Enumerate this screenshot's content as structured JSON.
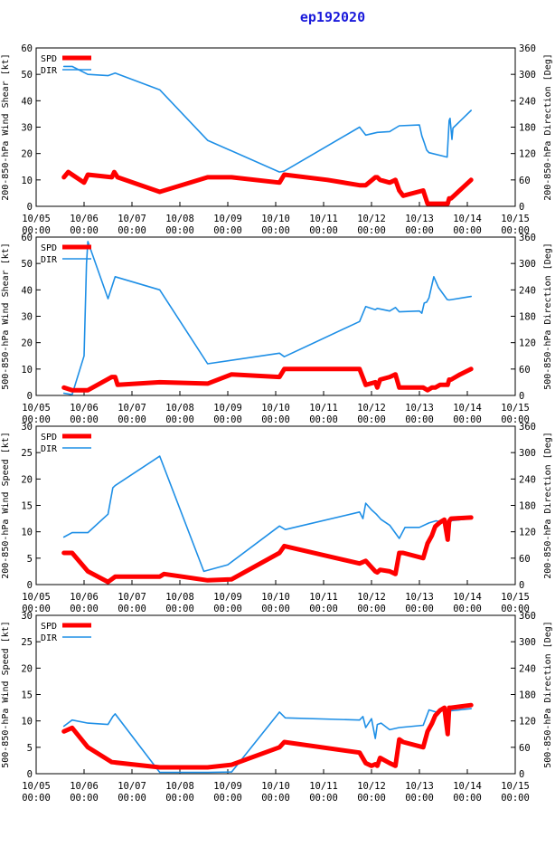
{
  "title": "ep192020",
  "colors": {
    "spd": "#ff0000",
    "dir": "#1e8fe6",
    "frame": "#000000",
    "grid": "#a0a0a0",
    "title": "#1a1adb"
  },
  "x_ticks": [
    [
      "10/05",
      "00:00"
    ],
    [
      "10/06",
      "00:00"
    ],
    [
      "10/07",
      "00:00"
    ],
    [
      "10/08",
      "00:00"
    ],
    [
      "10/09",
      "00:00"
    ],
    [
      "10/10",
      "00:00"
    ],
    [
      "10/11",
      "00:00"
    ],
    [
      "10/12",
      "00:00"
    ],
    [
      "10/13",
      "00:00"
    ],
    [
      "10/14",
      "00:00"
    ],
    [
      "10/15",
      "00:00"
    ]
  ],
  "chart_data": [
    {
      "type": "line",
      "ylabel": "200-850-hPa Wind Shear [kt]",
      "y2label": "200-850-hPa Direction [Deg]",
      "xlim": [
        0,
        10
      ],
      "ylim": [
        0,
        60
      ],
      "y2lim": [
        0,
        360
      ],
      "yticks": [
        0,
        10,
        20,
        30,
        40,
        50,
        60
      ],
      "y2ticks": [
        0,
        60,
        120,
        180,
        240,
        300,
        360
      ],
      "legend": [
        "SPD",
        "DIR"
      ],
      "legend_position": "top-left",
      "series": [
        {
          "name": "SPD",
          "axis": "left",
          "x": [
            0.58,
            0.67,
            0.75,
            1.0,
            1.08,
            1.58,
            1.63,
            1.7,
            2.58,
            3.58,
            4.08,
            5.08,
            5.18,
            6.08,
            6.75,
            6.88,
            7.08,
            7.12,
            7.18,
            7.38,
            7.5,
            7.58,
            7.66,
            8.08,
            8.17,
            8.26,
            8.3,
            8.33,
            8.43,
            8.52,
            8.59,
            8.62,
            8.66,
            9.08
          ],
          "y": [
            11,
            13,
            12,
            9,
            12,
            11,
            13,
            11,
            5.5,
            11,
            11,
            9,
            12,
            10,
            8,
            8,
            11,
            11,
            10,
            9,
            10,
            6,
            4,
            6,
            1,
            1,
            1,
            1,
            1,
            1,
            1,
            3,
            3,
            10
          ]
        },
        {
          "name": "DIR",
          "axis": "right",
          "x": [
            0.58,
            0.75,
            1.08,
            1.5,
            1.65,
            2.58,
            3.58,
            5.08,
            5.18,
            6.75,
            6.88,
            7.12,
            7.38,
            7.5,
            7.58,
            8.0,
            8.05,
            8.1,
            8.15,
            8.2,
            8.58,
            8.62,
            8.64,
            8.68,
            8.7,
            9.08
          ],
          "y": [
            318,
            318,
            300,
            297,
            303,
            265,
            150,
            78,
            80,
            180,
            162,
            168,
            170,
            178,
            183,
            185,
            160,
            145,
            128,
            122,
            112,
            195,
            200,
            152,
            178,
            218
          ]
        }
      ]
    },
    {
      "type": "line",
      "ylabel": "500-850-hPa Wind Shear [kt]",
      "y2label": "500-850-hPa Direction [Deg]",
      "xlim": [
        0,
        10
      ],
      "ylim": [
        0,
        60
      ],
      "y2lim": [
        0,
        360
      ],
      "yticks": [
        0,
        10,
        20,
        30,
        40,
        50,
        60
      ],
      "y2ticks": [
        0,
        60,
        120,
        180,
        240,
        300,
        360
      ],
      "legend": [
        "SPD",
        "DIR"
      ],
      "legend_position": "top-left",
      "series": [
        {
          "name": "SPD",
          "axis": "left",
          "x": [
            0.58,
            0.75,
            1.08,
            1.58,
            1.65,
            1.7,
            2.58,
            3.58,
            4.08,
            5.08,
            5.18,
            6.08,
            6.75,
            6.88,
            7.08,
            7.12,
            7.18,
            7.38,
            7.5,
            7.58,
            7.66,
            8.08,
            8.17,
            8.26,
            8.33,
            8.43,
            8.52,
            8.59,
            8.62,
            8.66,
            8.85,
            9.08
          ],
          "y": [
            3,
            2,
            2,
            7,
            7,
            4,
            5,
            4.5,
            8,
            7,
            10,
            10,
            10,
            4,
            5,
            3,
            6,
            7,
            8,
            3,
            3,
            3,
            2,
            3,
            3,
            4,
            4,
            4,
            6,
            6,
            8,
            10
          ]
        },
        {
          "name": "DIR",
          "axis": "right",
          "x": [
            0.58,
            0.75,
            1.0,
            1.05,
            1.08,
            1.5,
            1.65,
            2.58,
            3.58,
            5.08,
            5.18,
            6.75,
            6.88,
            7.08,
            7.12,
            7.38,
            7.5,
            7.58,
            8.0,
            8.05,
            8.1,
            8.15,
            8.2,
            8.3,
            8.4,
            8.58,
            8.62,
            9.08
          ],
          "y": [
            5,
            2,
            90,
            300,
            350,
            220,
            270,
            240,
            72,
            96,
            88,
            168,
            202,
            195,
            198,
            192,
            200,
            190,
            192,
            187,
            210,
            212,
            222,
            270,
            245,
            218,
            217,
            225
          ]
        }
      ]
    },
    {
      "type": "line",
      "ylabel": "200-850-hPa Wind Speed [kt]",
      "y2label": "200-850-hPa Direction [Deg]",
      "xlim": [
        0,
        10
      ],
      "ylim": [
        0,
        30
      ],
      "y2lim": [
        0,
        360
      ],
      "yticks": [
        0,
        5,
        10,
        15,
        20,
        25,
        30
      ],
      "y2ticks": [
        0,
        60,
        120,
        180,
        240,
        300,
        360
      ],
      "legend": [
        "SPD",
        "DIR"
      ],
      "legend_position": "top-left",
      "series": [
        {
          "name": "SPD",
          "axis": "left",
          "x": [
            0.58,
            0.75,
            1.08,
            1.5,
            1.65,
            2.58,
            2.67,
            3.58,
            4.08,
            5.08,
            5.18,
            6.75,
            6.88,
            7.08,
            7.12,
            7.18,
            7.38,
            7.5,
            7.58,
            7.66,
            8.08,
            8.17,
            8.26,
            8.33,
            8.43,
            8.52,
            8.59,
            8.62,
            8.66,
            9.08
          ],
          "y": [
            6,
            6,
            2.5,
            0.5,
            1.5,
            1.5,
            2,
            0.8,
            1,
            6,
            7.3,
            4,
            4.5,
            2.5,
            2.3,
            2.8,
            2.5,
            2,
            6,
            6,
            5,
            7.8,
            9.3,
            11,
            11.8,
            12.3,
            8.5,
            12,
            12.5,
            12.7
          ]
        },
        {
          "name": "DIR",
          "axis": "right",
          "x": [
            0.58,
            0.75,
            1.08,
            1.5,
            1.6,
            1.65,
            2.58,
            3.5,
            4.0,
            5.08,
            5.2,
            6.75,
            6.82,
            6.88,
            7.0,
            7.1,
            7.2,
            7.38,
            7.58,
            7.7,
            8.0,
            8.2,
            8.35,
            8.5,
            8.65,
            9.08
          ],
          "y": [
            108,
            118,
            118,
            160,
            220,
            225,
            292,
            30,
            45,
            133,
            125,
            165,
            150,
            185,
            170,
            160,
            148,
            135,
            105,
            130,
            130,
            140,
            145,
            140,
            145,
            150
          ]
        }
      ]
    },
    {
      "type": "line",
      "ylabel": "500-850-hPa Wind Speed [kt]",
      "y2label": "500-850-hPa Direction [Deg]",
      "xlim": [
        0,
        10
      ],
      "ylim": [
        0,
        30
      ],
      "y2lim": [
        0,
        360
      ],
      "yticks": [
        0,
        5,
        10,
        15,
        20,
        25,
        30
      ],
      "y2ticks": [
        0,
        60,
        120,
        180,
        240,
        300,
        360
      ],
      "legend": [
        "SPD",
        "DIR"
      ],
      "legend_position": "top-left",
      "series": [
        {
          "name": "SPD",
          "axis": "left",
          "x": [
            0.58,
            0.75,
            1.08,
            1.58,
            2.58,
            3.58,
            4.08,
            5.08,
            5.18,
            6.75,
            6.88,
            7.0,
            7.08,
            7.12,
            7.18,
            7.38,
            7.5,
            7.58,
            7.66,
            8.08,
            8.17,
            8.26,
            8.33,
            8.43,
            8.52,
            8.59,
            8.62,
            8.66,
            9.08
          ],
          "y": [
            8,
            8.7,
            5,
            2.2,
            1.2,
            1.2,
            1.7,
            5,
            6,
            4,
            2,
            1.5,
            1.8,
            1.5,
            3,
            2,
            1.5,
            6.5,
            6,
            5,
            8,
            9.5,
            11,
            12,
            12.5,
            7.5,
            12.5,
            12.5,
            13
          ]
        },
        {
          "name": "DIR",
          "axis": "right",
          "x": [
            0.58,
            0.75,
            1.08,
            1.5,
            1.6,
            1.65,
            2.58,
            3.58,
            4.08,
            5.08,
            5.2,
            6.75,
            6.82,
            6.88,
            7.0,
            7.08,
            7.12,
            7.2,
            7.38,
            7.58,
            8.08,
            8.2,
            8.35,
            8.5,
            8.65,
            9.08
          ],
          "y": [
            108,
            122,
            115,
            112,
            130,
            136,
            3,
            3,
            4,
            140,
            127,
            122,
            130,
            105,
            125,
            80,
            112,
            115,
            100,
            105,
            110,
            145,
            140,
            145,
            143,
            148
          ]
        }
      ]
    }
  ]
}
